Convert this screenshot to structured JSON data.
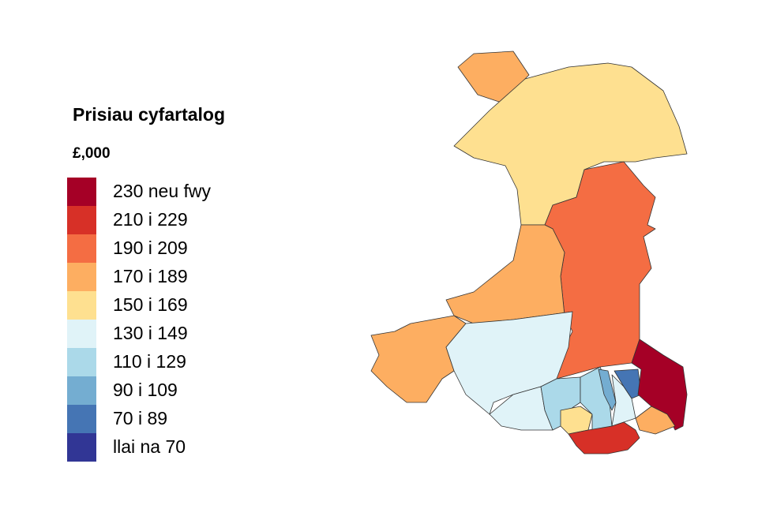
{
  "legend": {
    "title": "Prisiau cyfartalog",
    "subtitle": "£,000",
    "items": [
      {
        "label": "230 neu fwy",
        "color": "#a50026"
      },
      {
        "label": "210 i 229",
        "color": "#d73027"
      },
      {
        "label": "190 i 209",
        "color": "#f46d43"
      },
      {
        "label": "170 i 189",
        "color": "#fdae61"
      },
      {
        "label": "150 i 169",
        "color": "#fee090"
      },
      {
        "label": "130 i 149",
        "color": "#e0f3f8"
      },
      {
        "label": "110 i 129",
        "color": "#abd9e9"
      },
      {
        "label": "90 i 109",
        "color": "#74add1"
      },
      {
        "label": "70 i 89",
        "color": "#4575b4"
      },
      {
        "label": "llai na 70",
        "color": "#313695"
      }
    ]
  }
}
